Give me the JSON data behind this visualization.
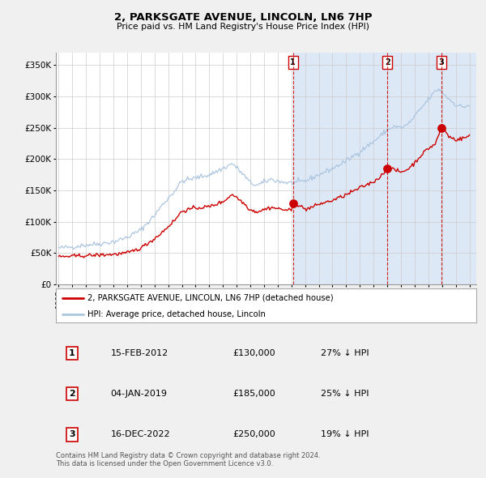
{
  "title": "2, PARKSGATE AVENUE, LINCOLN, LN6 7HP",
  "subtitle": "Price paid vs. HM Land Registry's House Price Index (HPI)",
  "legend_label_red": "2, PARKSGATE AVENUE, LINCOLN, LN6 7HP (detached house)",
  "legend_label_blue": "HPI: Average price, detached house, Lincoln",
  "transactions": [
    {
      "num": 1,
      "date": "15-FEB-2012",
      "price": 130000,
      "hpi_diff": "27% ↓ HPI"
    },
    {
      "num": 2,
      "date": "04-JAN-2019",
      "price": 185000,
      "hpi_diff": "25% ↓ HPI"
    },
    {
      "num": 3,
      "date": "16-DEC-2022",
      "price": 250000,
      "hpi_diff": "19% ↓ HPI"
    }
  ],
  "transaction_dates_decimal": [
    2012.12,
    2019.01,
    2022.96
  ],
  "ylim": [
    0,
    370000
  ],
  "yticks": [
    0,
    50000,
    100000,
    150000,
    200000,
    250000,
    300000,
    350000
  ],
  "ytick_labels": [
    "£0",
    "£50K",
    "£100K",
    "£150K",
    "£200K",
    "£250K",
    "£300K",
    "£350K"
  ],
  "xlim_start": 1994.8,
  "xlim_end": 2025.5,
  "bg_color": "#f0f0f0",
  "plot_bg_color": "#ffffff",
  "grid_color": "#cccccc",
  "red_color": "#cc0000",
  "blue_color": "#aac4e0",
  "shade_color": "#dce8f5",
  "footnote": "Contains HM Land Registry data © Crown copyright and database right 2024.\nThis data is licensed under the Open Government Licence v3.0."
}
